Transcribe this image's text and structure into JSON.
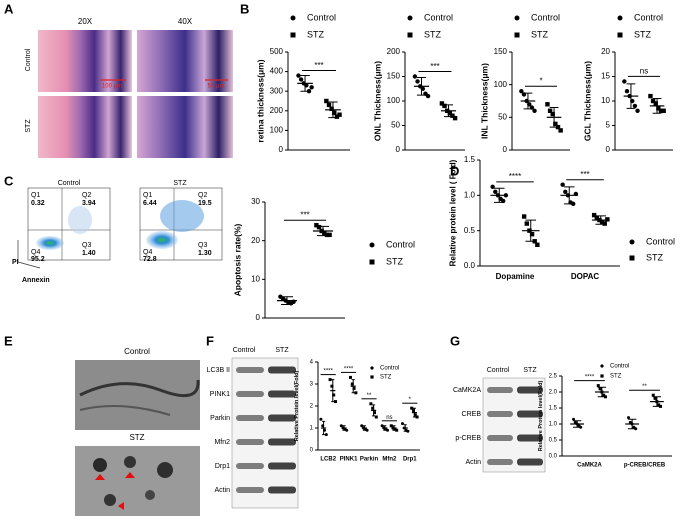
{
  "panels": [
    "A",
    "B",
    "C",
    "D",
    "E",
    "F",
    "G"
  ],
  "histology": {
    "columns": [
      "20X",
      "40X"
    ],
    "rows": [
      "Control",
      "STZ"
    ],
    "scalebars": [
      "100 μm",
      "50 μm"
    ]
  },
  "flow": {
    "plots": [
      {
        "title": "Control",
        "quadrants": [
          [
            "Q1",
            "0.32"
          ],
          [
            "Q2",
            "3.94"
          ],
          [
            "Q3",
            "1.40"
          ],
          [
            "Q4",
            "95.2"
          ]
        ]
      },
      {
        "title": "STZ",
        "quadrants": [
          [
            "Q1",
            "6.44"
          ],
          [
            "Q2",
            "19.5"
          ],
          [
            "Q3",
            "1.30"
          ],
          [
            "Q4",
            "72.8"
          ]
        ]
      }
    ],
    "y_label": "PI",
    "x_label": "Annexin"
  },
  "em": {
    "labels": [
      "Control",
      "STZ"
    ]
  },
  "blot_f": {
    "columns": [
      "Control",
      "STZ"
    ],
    "rows": [
      "LC3B II",
      "PINK1",
      "Parkin",
      "Mfn2",
      "Drp1",
      "Actin"
    ]
  },
  "blot_g": {
    "columns": [
      "Control",
      "STZ"
    ],
    "rows": [
      "CaMK2A",
      "CREB",
      "p-CREB",
      "Actin"
    ]
  },
  "chart_data": [
    {
      "type": "dot",
      "ylabel": "retina thickness(μm)",
      "categories": [
        null
      ],
      "ylim": [
        0,
        500
      ],
      "yticks": [
        0,
        100,
        200,
        300,
        400,
        500
      ],
      "annotations": [
        "***"
      ],
      "series": [
        {
          "name": "Control",
          "color": "#000000",
          "marker": "circle",
          "values": [
            340
          ],
          "errors": [
            40
          ],
          "points": [
            [
              380,
              360,
              340,
              330,
              300,
              320
            ]
          ]
        },
        {
          "name": "STZ",
          "color": "#000000",
          "marker": "square",
          "values": [
            205
          ],
          "errors": [
            40
          ],
          "points": [
            [
              250,
              230,
              210,
              190,
              170,
              180
            ]
          ]
        }
      ]
    },
    {
      "type": "dot",
      "ylabel": "ONL Thickness(μm)",
      "categories": [
        null
      ],
      "ylim": [
        0,
        200
      ],
      "yticks": [
        0,
        50,
        100,
        150,
        200
      ],
      "annotations": [
        "***"
      ],
      "series": [
        {
          "name": "Control",
          "color": "#000000",
          "marker": "circle",
          "values": [
            130
          ],
          "errors": [
            18
          ],
          "points": [
            [
              150,
              140,
              130,
              125,
              115,
              110
            ]
          ]
        },
        {
          "name": "STZ",
          "color": "#000000",
          "marker": "square",
          "values": [
            80
          ],
          "errors": [
            12
          ],
          "points": [
            [
              95,
              90,
              80,
              75,
              70,
              65
            ]
          ]
        }
      ]
    },
    {
      "type": "dot",
      "ylabel": "INL Thickness(μm)",
      "categories": [
        null
      ],
      "ylim": [
        0,
        150
      ],
      "yticks": [
        0,
        50,
        100,
        150
      ],
      "annotations": [
        "*"
      ],
      "series": [
        {
          "name": "Control",
          "color": "#000000",
          "marker": "circle",
          "values": [
            75
          ],
          "errors": [
            12
          ],
          "points": [
            [
              90,
              85,
              75,
              70,
              65,
              60
            ]
          ]
        },
        {
          "name": "STZ",
          "color": "#000000",
          "marker": "square",
          "values": [
            50
          ],
          "errors": [
            15
          ],
          "points": [
            [
              70,
              60,
              55,
              40,
              35,
              30
            ]
          ]
        }
      ]
    },
    {
      "type": "dot",
      "ylabel": "GCL Thickness(μm)",
      "categories": [
        null
      ],
      "ylim": [
        0,
        20
      ],
      "yticks": [
        0,
        5,
        10,
        15,
        20
      ],
      "annotations": [
        "ns"
      ],
      "series": [
        {
          "name": "Control",
          "color": "#000000",
          "marker": "circle",
          "values": [
            11
          ],
          "errors": [
            2.5
          ],
          "points": [
            [
              14,
              12,
              11,
              10,
              9,
              8
            ]
          ]
        },
        {
          "name": "STZ",
          "color": "#000000",
          "marker": "square",
          "values": [
            9
          ],
          "errors": [
            1.5
          ],
          "points": [
            [
              11,
              10,
              9.5,
              8.5,
              8,
              8
            ]
          ]
        }
      ]
    },
    {
      "type": "dot",
      "ylabel": "Apoptosis rate(%)",
      "categories": [
        null
      ],
      "ylim": [
        0,
        30
      ],
      "yticks": [
        0,
        10,
        20,
        30
      ],
      "annotations": [
        "***"
      ],
      "series": [
        {
          "name": "Control",
          "color": "#000000",
          "marker": "circle",
          "values": [
            4.5
          ],
          "errors": [
            1
          ],
          "points": [
            [
              5.5,
              5,
              4.5,
              4,
              3.8,
              4.2
            ]
          ]
        },
        {
          "name": "STZ",
          "color": "#000000",
          "marker": "square",
          "values": [
            22.5
          ],
          "errors": [
            1.2
          ],
          "points": [
            [
              24,
              23.5,
              22.5,
              22,
              21.5,
              21.5
            ]
          ]
        }
      ]
    },
    {
      "type": "dot",
      "ylabel": "Relative protein level ( Fold)",
      "categories": [
        "Dopamine",
        "DOPAC"
      ],
      "ylim": [
        0,
        1.5
      ],
      "yticks": [
        {
          "value": 0,
          "label": "0.0"
        },
        0.5,
        {
          "value": 1,
          "label": "1.0"
        },
        1.5
      ],
      "annotations": [
        "****",
        "***"
      ],
      "series": [
        {
          "name": "Control",
          "color": "#000000",
          "marker": "circle",
          "values": [
            1.0,
            1.0
          ],
          "errors": [
            0.1,
            0.12
          ],
          "points": [
            [
              1.12,
              1.05,
              1.0,
              0.95,
              0.92,
              1.0
            ],
            [
              1.15,
              1.05,
              1.0,
              0.9,
              0.88,
              1.02
            ]
          ]
        },
        {
          "name": "STZ",
          "color": "#000000",
          "marker": "square",
          "values": [
            0.5,
            0.65
          ],
          "errors": [
            0.15,
            0.06
          ],
          "points": [
            [
              0.7,
              0.6,
              0.5,
              0.45,
              0.35,
              0.3
            ],
            [
              0.72,
              0.68,
              0.65,
              0.62,
              0.6,
              0.66
            ]
          ]
        }
      ]
    },
    {
      "type": "dot",
      "ylabel": "Relative Protein level(Fold)",
      "categories": [
        "LCB2",
        "PINK1",
        "Parkin",
        "Mfn2",
        "Drp1"
      ],
      "ylim": [
        0,
        4
      ],
      "yticks": [
        0,
        1,
        2,
        3,
        4
      ],
      "annotations": [
        "****",
        "****",
        "**",
        "ns",
        "*"
      ],
      "series": [
        {
          "name": "Control",
          "color": "#000000",
          "marker": "circle",
          "values": [
            1,
            1,
            1,
            1,
            1
          ],
          "errors": [
            0.3,
            0.1,
            0.1,
            0.1,
            0.15
          ],
          "points": [
            [
              1.4,
              1.1,
              0.9,
              0.7
            ],
            [
              1.1,
              1.0,
              0.95,
              0.9
            ],
            [
              1.1,
              1.0,
              0.95,
              0.9
            ],
            [
              1.1,
              1.0,
              0.95,
              0.9
            ],
            [
              1.2,
              1.0,
              0.9,
              0.85
            ]
          ]
        },
        {
          "name": "STZ",
          "color": "#000000",
          "marker": "square",
          "values": [
            2.7,
            2.9,
            1.8,
            1.0,
            1.7
          ],
          "errors": [
            0.5,
            0.3,
            0.25,
            0.1,
            0.2
          ],
          "points": [
            [
              3.2,
              2.9,
              2.5,
              2.2
            ],
            [
              3.3,
              3.0,
              2.8,
              2.6
            ],
            [
              2.1,
              1.9,
              1.7,
              1.5
            ],
            [
              1.1,
              1.0,
              0.95,
              0.9
            ],
            [
              1.9,
              1.8,
              1.6,
              1.5
            ]
          ]
        }
      ]
    },
    {
      "type": "dot",
      "ylabel": "Relative Protein level(Fold)",
      "categories": [
        "CaMK2A",
        "p-CREB/CREB"
      ],
      "ylim": [
        0,
        2.5
      ],
      "yticks": [
        {
          "value": 0,
          "label": "0.0"
        },
        0.5,
        {
          "value": 1,
          "label": "1.0"
        },
        1.5,
        {
          "value": 2,
          "label": "2.0"
        },
        2.5
      ],
      "annotations": [
        "****",
        "**"
      ],
      "series": [
        {
          "name": "Control",
          "color": "#000000",
          "marker": "circle",
          "values": [
            1,
            1
          ],
          "errors": [
            0.1,
            0.15
          ],
          "points": [
            [
              1.15,
              1.05,
              1.0,
              0.95,
              0.9
            ],
            [
              1.2,
              1.05,
              1.0,
              0.9,
              0.85
            ]
          ]
        },
        {
          "name": "STZ",
          "color": "#000000",
          "marker": "square",
          "values": [
            2.0,
            1.7
          ],
          "errors": [
            0.15,
            0.15
          ],
          "points": [
            [
              2.2,
              2.1,
              2.0,
              1.9,
              1.85
            ],
            [
              1.9,
              1.8,
              1.7,
              1.6,
              1.55
            ]
          ]
        }
      ]
    }
  ]
}
